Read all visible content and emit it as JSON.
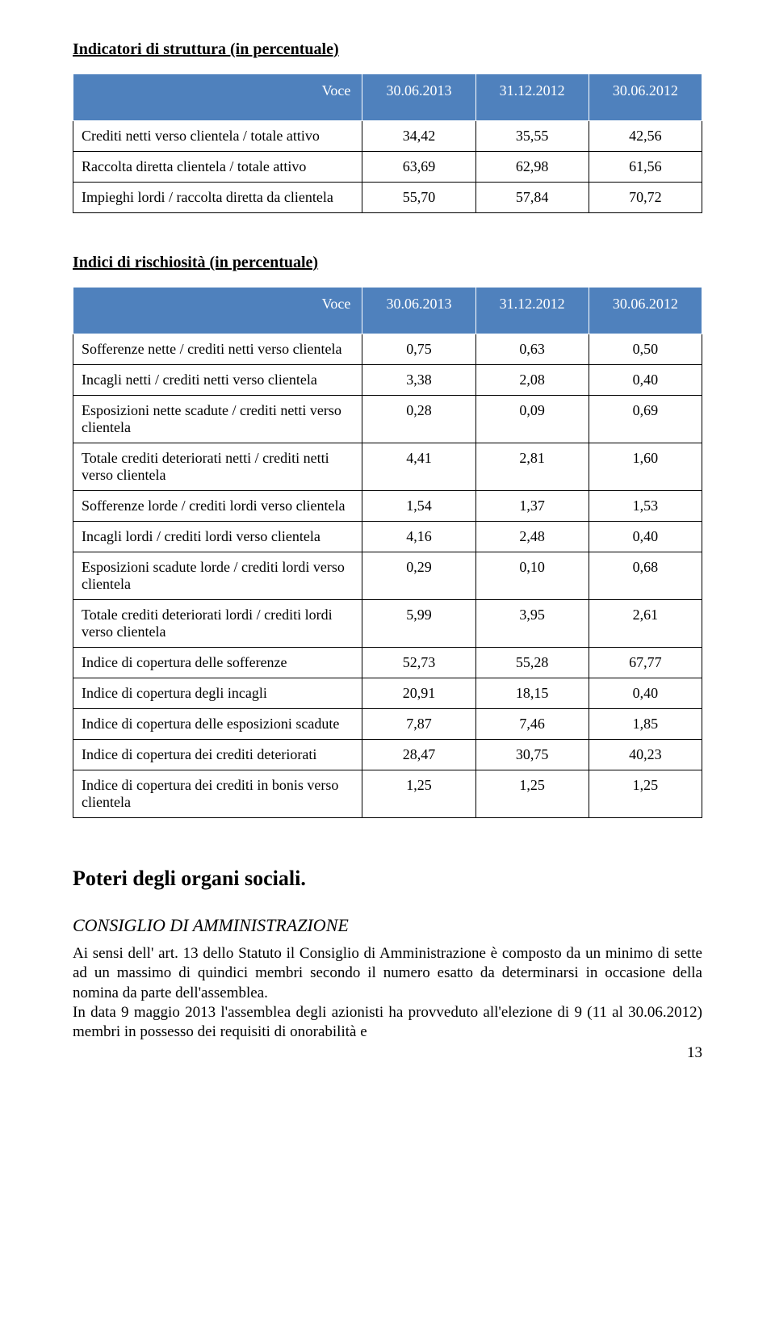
{
  "table1": {
    "title": "Indicatori di struttura (in percentuale)",
    "headers": {
      "voce": "Voce",
      "c1": "30.06.2013",
      "c2": "31.12.2012",
      "c3": "30.06.2012"
    },
    "colors": {
      "header_bg": "#4f81bd",
      "header_fg": "#ffffff",
      "border": "#000000"
    },
    "rows": [
      {
        "label": "Crediti netti verso clientela / totale attivo",
        "v1": "34,42",
        "v2": "35,55",
        "v3": "42,56"
      },
      {
        "label": "Raccolta diretta clientela / totale attivo",
        "v1": "63,69",
        "v2": "62,98",
        "v3": "61,56"
      },
      {
        "label": "Impieghi lordi / raccolta diretta da clientela",
        "v1": "55,70",
        "v2": "57,84",
        "v3": "70,72"
      }
    ]
  },
  "table2": {
    "title": "Indici di rischiosità (in percentuale)",
    "headers": {
      "voce": "Voce",
      "c1": "30.06.2013",
      "c2": "31.12.2012",
      "c3": "30.06.2012"
    },
    "colors": {
      "header_bg": "#4f81bd",
      "header_fg": "#ffffff",
      "border": "#000000"
    },
    "rows": [
      {
        "label": "Sofferenze nette / crediti netti verso clientela",
        "v1": "0,75",
        "v2": "0,63",
        "v3": "0,50"
      },
      {
        "label": "Incagli netti / crediti netti verso clientela",
        "v1": "3,38",
        "v2": "2,08",
        "v3": "0,40"
      },
      {
        "label": "Esposizioni nette scadute / crediti netti verso clientela",
        "v1": "0,28",
        "v2": "0,09",
        "v3": "0,69"
      },
      {
        "label": "Totale crediti deteriorati netti / crediti netti verso clientela",
        "v1": "4,41",
        "v2": "2,81",
        "v3": "1,60"
      },
      {
        "label": "Sofferenze lorde / crediti lordi verso clientela",
        "v1": "1,54",
        "v2": "1,37",
        "v3": "1,53"
      },
      {
        "label": "Incagli lordi / crediti lordi verso clientela",
        "v1": "4,16",
        "v2": "2,48",
        "v3": "0,40"
      },
      {
        "label": "Esposizioni scadute lorde / crediti lordi verso clientela",
        "v1": "0,29",
        "v2": "0,10",
        "v3": "0,68"
      },
      {
        "label": "Totale crediti deteriorati lordi / crediti lordi verso clientela",
        "v1": "5,99",
        "v2": "3,95",
        "v3": "2,61"
      },
      {
        "label": "Indice di copertura delle sofferenze",
        "v1": "52,73",
        "v2": "55,28",
        "v3": "67,77"
      },
      {
        "label": "Indice di copertura degli incagli",
        "v1": "20,91",
        "v2": "18,15",
        "v3": "0,40"
      },
      {
        "label": "Indice di copertura delle esposizioni scadute",
        "v1": "7,87",
        "v2": "7,46",
        "v3": "1,85"
      },
      {
        "label": "Indice di copertura dei crediti deteriorati",
        "v1": "28,47",
        "v2": "30,75",
        "v3": "40,23"
      },
      {
        "label": "Indice di copertura dei crediti in bonis verso clientela",
        "v1": "1,25",
        "v2": "1,25",
        "v3": "1,25"
      }
    ]
  },
  "poteri": {
    "title": "Poteri degli organi sociali.",
    "consiglio_title": "CONSIGLIO DI AMMINISTRAZIONE",
    "body": "Ai sensi dell' art. 13 dello Statuto il Consiglio di Amministrazione è composto da un minimo di sette ad un massimo di quindici membri secondo il numero esatto da determinarsi in occasione della nomina da parte dell'assemblea.\nIn data 9 maggio 2013 l'assemblea degli azionisti ha provveduto all'elezione di 9 (11 al 30.06.2012) membri in possesso dei requisiti di onorabilità e"
  },
  "page_number": "13"
}
